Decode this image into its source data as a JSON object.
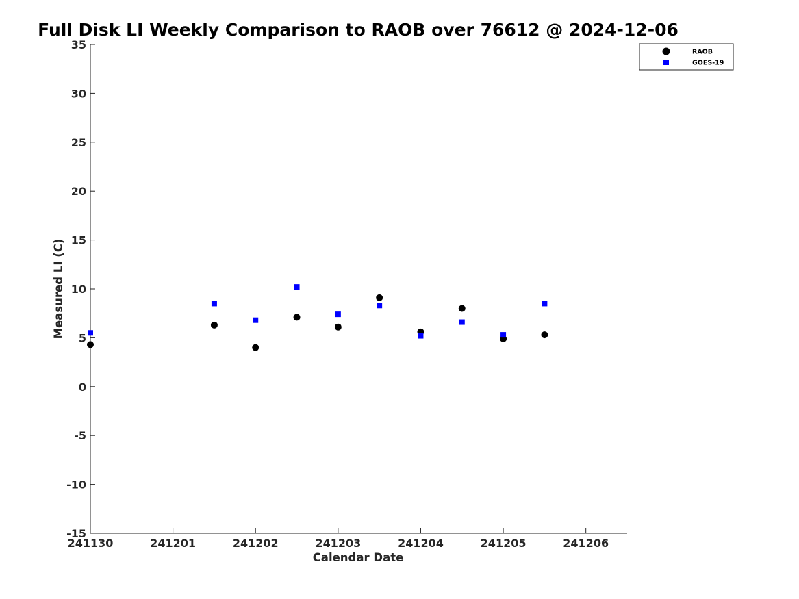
{
  "chart_data": {
    "type": "scatter",
    "title": "Full Disk LI Weekly Comparison to RAOB over 76612 @ 2024-12-06",
    "xlabel": "Calendar Date",
    "ylabel": "Measured LI (C)",
    "x_ticks": [
      "241130",
      "241201",
      "241202",
      "241203",
      "241204",
      "241205",
      "241206"
    ],
    "xlim": [
      0,
      6.5
    ],
    "ylim": [
      -15,
      35
    ],
    "y_ticks": [
      -15,
      -10,
      -5,
      0,
      5,
      10,
      15,
      20,
      25,
      30,
      35
    ],
    "grid": false,
    "legend_position": "top-right",
    "series": [
      {
        "name": "RAOB",
        "marker": "circle",
        "color": "#000000",
        "points": [
          {
            "x": 0.0,
            "y": 4.3
          },
          {
            "x": 1.5,
            "y": 6.3
          },
          {
            "x": 2.0,
            "y": 4.0
          },
          {
            "x": 2.5,
            "y": 7.1
          },
          {
            "x": 3.0,
            "y": 6.1
          },
          {
            "x": 3.5,
            "y": 9.1
          },
          {
            "x": 4.0,
            "y": 5.6
          },
          {
            "x": 4.5,
            "y": 8.0
          },
          {
            "x": 5.0,
            "y": 4.9
          },
          {
            "x": 5.5,
            "y": 5.3
          }
        ]
      },
      {
        "name": "GOES-19",
        "marker": "square",
        "color": "#0000ff",
        "points": [
          {
            "x": 0.0,
            "y": 5.5
          },
          {
            "x": 1.5,
            "y": 8.5
          },
          {
            "x": 2.0,
            "y": 6.8
          },
          {
            "x": 2.5,
            "y": 10.2
          },
          {
            "x": 3.0,
            "y": 7.4
          },
          {
            "x": 3.5,
            "y": 8.3
          },
          {
            "x": 4.0,
            "y": 5.2
          },
          {
            "x": 4.5,
            "y": 6.6
          },
          {
            "x": 5.0,
            "y": 5.3
          },
          {
            "x": 5.5,
            "y": 8.5
          }
        ]
      }
    ]
  }
}
